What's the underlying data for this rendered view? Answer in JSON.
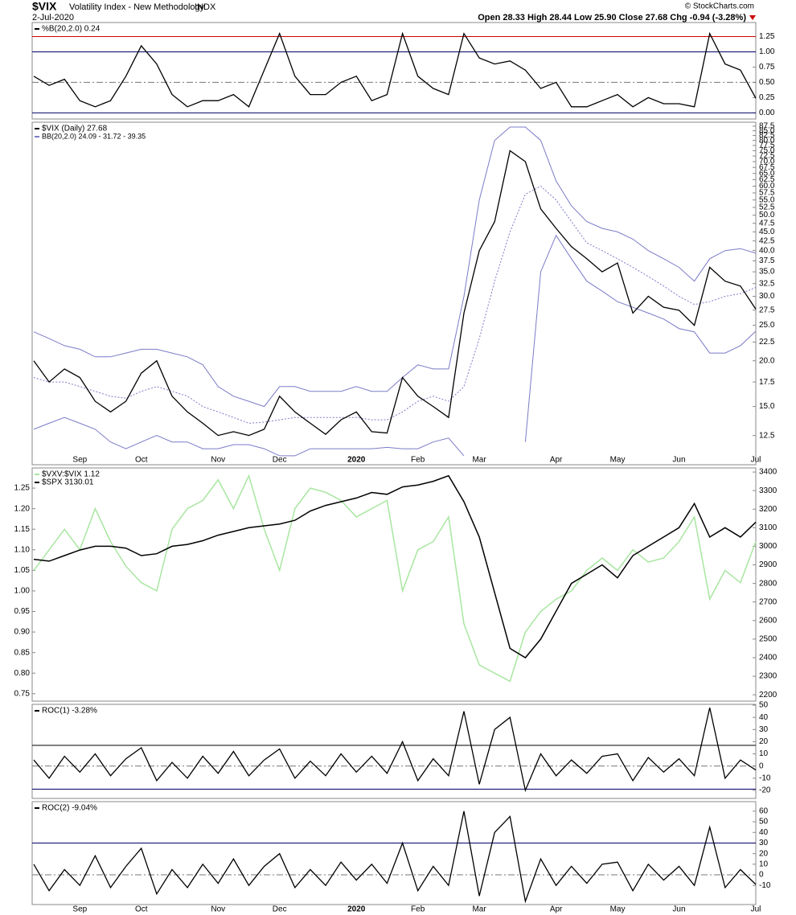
{
  "header": {
    "symbol": "$VIX",
    "name": "Volatility Index - New Methodology",
    "exchange": "INDX",
    "date": "2-Jul-2020",
    "quote": "Open 28.33  High 28.44  Low 25.90  Close 27.68  Chg -0.94 (-3.28%)",
    "credit": "© StockCharts.com"
  },
  "chart_data": [
    {
      "type": "line",
      "ylim": [
        -0.1,
        1.48
      ],
      "yticks": [
        {
          "value": 0,
          "label": "0.00"
        },
        {
          "value": 0.25,
          "label": "0.25"
        },
        {
          "value": 0.5,
          "label": "0.50"
        },
        {
          "value": 0.75,
          "label": "0.75"
        },
        {
          "value": 1,
          "label": "1.00"
        },
        {
          "value": 1.25,
          "label": "1.25"
        }
      ],
      "hlines": [
        {
          "value": 1.25,
          "color": "#cc0000",
          "dash": false
        },
        {
          "value": 1,
          "color": "#000066",
          "dash": false
        },
        {
          "value": 0.5,
          "color": "#777777",
          "dash": true
        },
        {
          "value": 0,
          "color": "#000066",
          "dash": false
        }
      ],
      "series": [
        {
          "name": "%B(20,2.0) 0.24",
          "color": "#000000",
          "values": [
            0.6,
            0.45,
            0.55,
            0.2,
            0.1,
            0.2,
            0.6,
            1.1,
            0.8,
            0.3,
            0.1,
            0.2,
            0.2,
            0.3,
            0.1,
            0.7,
            1.3,
            0.6,
            0.3,
            0.3,
            0.5,
            0.6,
            0.2,
            0.3,
            1.3,
            0.6,
            0.4,
            0.3,
            1.3,
            0.9,
            0.8,
            0.85,
            0.7,
            0.4,
            0.5,
            0.1,
            0.1,
            0.2,
            0.3,
            0.1,
            0.25,
            0.15,
            0.15,
            0.1,
            1.3,
            0.8,
            0.7,
            0.24
          ]
        }
      ]
    },
    {
      "type": "line",
      "log": true,
      "ylim": [
        10.4,
        89.7
      ],
      "categories": [
        null,
        null,
        null,
        "Sep",
        null,
        null,
        null,
        "Oct",
        null,
        null,
        null,
        null,
        "Nov",
        null,
        null,
        null,
        "Dec",
        null,
        null,
        null,
        null,
        "2020",
        null,
        null,
        null,
        "Feb",
        null,
        null,
        null,
        "Mar",
        null,
        null,
        null,
        null,
        "Apr",
        null,
        null,
        null,
        "May",
        null,
        null,
        null,
        "Jun",
        null,
        null,
        null,
        null,
        "Jul"
      ],
      "yticks": [
        12.5,
        {
          "value": 15,
          "label": "15.0"
        },
        17.5,
        {
          "value": 20,
          "label": "20.0"
        },
        22.5,
        {
          "value": 25,
          "label": "25.0"
        },
        27.5,
        {
          "value": 30,
          "label": "30.0"
        },
        32.5,
        {
          "value": 35,
          "label": "35.0"
        },
        37.5,
        {
          "value": 40,
          "label": "40.0"
        },
        42.5,
        {
          "value": 45,
          "label": "45.0"
        },
        47.5,
        {
          "value": 50,
          "label": "50.0"
        },
        52.5,
        {
          "value": 55,
          "label": "55.0"
        },
        57.5,
        {
          "value": 60,
          "label": "60.0"
        },
        62.5,
        {
          "value": 65,
          "label": "65.0"
        },
        67.5,
        {
          "value": 70,
          "label": "70.0"
        },
        72.5,
        {
          "value": 75,
          "label": "75.0"
        },
        77.5,
        {
          "value": 80,
          "label": "80.0"
        },
        82.5,
        {
          "value": 85,
          "label": "85.0"
        },
        87.5
      ],
      "series": [
        {
          "name": "$VIX (Daily) 27.68",
          "color": "#000000",
          "values": [
            20,
            17.5,
            19,
            18,
            15.5,
            14.5,
            15.5,
            18.5,
            20,
            16,
            14.5,
            13.5,
            12.5,
            12.8,
            12.5,
            13,
            16,
            14.5,
            13.5,
            12.6,
            13.8,
            14.5,
            12.8,
            12.7,
            18,
            16,
            15,
            14,
            27,
            40,
            48,
            75,
            70,
            52,
            46,
            41,
            38,
            35,
            37,
            27,
            30,
            28,
            27.5,
            25,
            36,
            33,
            32,
            27.68
          ]
        }
      ],
      "bands": {
        "name": "BB(20,2.0) 24.09 - 31.72 - 39.35",
        "color": "#7b7bc8",
        "upper": [
          24,
          23,
          22,
          21.5,
          20.5,
          20.5,
          21,
          21.5,
          21.5,
          21,
          20.5,
          19.5,
          17,
          16,
          15.5,
          15,
          17,
          17,
          16.5,
          16.5,
          16.5,
          17,
          16.5,
          16.5,
          18,
          19.5,
          19,
          19,
          30,
          55,
          80,
          87,
          87,
          80,
          62,
          53,
          48,
          46,
          45,
          43,
          40,
          38,
          36,
          33,
          38,
          40,
          40.5,
          39.35
        ],
        "middle": [
          18,
          17.5,
          17.5,
          17,
          16.5,
          16,
          15.8,
          16.5,
          17,
          16.5,
          16,
          15,
          14.5,
          14,
          13.5,
          13.6,
          13.8,
          14,
          14,
          14,
          14,
          14,
          13.8,
          13.8,
          14.5,
          15.5,
          16,
          15.5,
          17,
          23,
          33,
          45,
          57,
          60,
          55,
          48,
          42,
          40,
          38,
          36,
          34,
          32,
          30,
          28.5,
          29,
          30,
          30.5,
          31.72
        ],
        "lower": [
          13,
          13.5,
          14,
          13.5,
          13,
          12,
          11.5,
          12,
          12.5,
          12,
          12,
          11.5,
          11.5,
          11.8,
          11.8,
          11.5,
          11,
          11,
          11.5,
          11.5,
          11.5,
          11.5,
          11.5,
          11.6,
          11.5,
          11.5,
          12,
          12.3,
          11,
          null,
          null,
          null,
          12,
          35,
          44,
          38,
          33,
          31,
          29,
          28,
          27,
          26,
          24.5,
          24,
          21,
          21,
          22,
          24.09
        ]
      }
    },
    {
      "type": "line",
      "ylim": [
        0.732,
        1.299
      ],
      "y2lim": [
        2166,
        3422
      ],
      "yticks": [
        {
          "value": 0.75,
          "label": "0.75"
        },
        {
          "value": 0.8,
          "label": "0.80"
        },
        {
          "value": 0.85,
          "label": "0.85"
        },
        {
          "value": 0.9,
          "label": "0.90"
        },
        {
          "value": 0.95,
          "label": "0.95"
        },
        {
          "value": 1,
          "label": "1.00"
        },
        {
          "value": 1.05,
          "label": "1.05"
        },
        {
          "value": 1.1,
          "label": "1.10"
        },
        {
          "value": 1.15,
          "label": "1.15"
        },
        {
          "value": 1.2,
          "label": "1.20"
        },
        {
          "value": 1.25,
          "label": "1.25"
        }
      ],
      "y2ticks": [
        2200,
        2300,
        2400,
        2500,
        2600,
        2700,
        2800,
        2900,
        3000,
        3100,
        3200,
        3300,
        3400
      ],
      "series": [
        {
          "name": "$VXV:$VIX 1.12",
          "color": "#a8e6a0",
          "values": [
            1.05,
            1.1,
            1.15,
            1.1,
            1.2,
            1.12,
            1.06,
            1.02,
            1.0,
            1.15,
            1.2,
            1.22,
            1.27,
            1.2,
            1.28,
            1.15,
            1.05,
            1.2,
            1.25,
            1.24,
            1.22,
            1.18,
            1.2,
            1.22,
            1.0,
            1.1,
            1.12,
            1.18,
            0.92,
            0.82,
            0.8,
            0.78,
            0.9,
            0.95,
            0.98,
            1.0,
            1.05,
            1.08,
            1.05,
            1.1,
            1.07,
            1.08,
            1.12,
            1.18,
            0.98,
            1.05,
            1.02,
            1.12
          ]
        },
        {
          "name": "$SPX 3130.01",
          "color": "#000000",
          "axis": "y2",
          "values": [
            2930,
            2920,
            2950,
            2980,
            3000,
            3000,
            2990,
            2950,
            2960,
            3000,
            3010,
            3030,
            3060,
            3080,
            3100,
            3110,
            3120,
            3140,
            3190,
            3220,
            3240,
            3260,
            3290,
            3280,
            3320,
            3330,
            3350,
            3380,
            3240,
            3050,
            2750,
            2450,
            2400,
            2500,
            2650,
            2800,
            2850,
            2900,
            2830,
            2950,
            3000,
            3050,
            3100,
            3230,
            3050,
            3100,
            3050,
            3130.01
          ]
        }
      ]
    },
    {
      "type": "line",
      "ylim": [
        -26.6,
        50.7
      ],
      "yticks": [
        -20,
        -10,
        0,
        10,
        20,
        30,
        40,
        50
      ],
      "hlines": [
        {
          "value": 17,
          "color": "#000000",
          "dash": false
        },
        {
          "value": 0,
          "color": "#777777",
          "dash": true
        },
        {
          "value": -19,
          "color": "#000066",
          "dash": false
        }
      ],
      "series": [
        {
          "name": "ROC(1) -3.28%",
          "color": "#000000",
          "values": [
            5,
            -10,
            8,
            -5,
            10,
            -8,
            6,
            15,
            -12,
            3,
            -10,
            8,
            -6,
            12,
            -8,
            5,
            14,
            -10,
            4,
            -8,
            10,
            -5,
            8,
            -6,
            20,
            -12,
            6,
            -8,
            45,
            -15,
            30,
            40,
            -20,
            10,
            -8,
            5,
            -6,
            8,
            10,
            -12,
            7,
            -5,
            6,
            -8,
            48,
            -10,
            5,
            -3.28
          ]
        }
      ]
    },
    {
      "type": "line",
      "ylim": [
        -28,
        69
      ],
      "yticks": [
        -10,
        0,
        10,
        20,
        30,
        40,
        50,
        60
      ],
      "categories": [
        null,
        null,
        null,
        "Sep",
        null,
        null,
        null,
        "Oct",
        null,
        null,
        null,
        null,
        "Nov",
        null,
        null,
        null,
        "Dec",
        null,
        null,
        null,
        null,
        "2020",
        null,
        null,
        null,
        "Feb",
        null,
        null,
        null,
        "Mar",
        null,
        null,
        null,
        null,
        "Apr",
        null,
        null,
        null,
        "May",
        null,
        null,
        null,
        "Jun",
        null,
        null,
        null,
        null,
        "Jul"
      ],
      "hlines": [
        {
          "value": 30,
          "color": "#000066",
          "dash": false
        },
        {
          "value": 0,
          "color": "#777777",
          "dash": true
        }
      ],
      "series": [
        {
          "name": "ROC(2) -9.04%",
          "color": "#000000",
          "values": [
            10,
            -15,
            5,
            -10,
            18,
            -12,
            8,
            25,
            -18,
            5,
            -12,
            10,
            -8,
            15,
            -10,
            8,
            20,
            -12,
            5,
            -10,
            12,
            -5,
            10,
            -8,
            30,
            -15,
            8,
            -10,
            60,
            -20,
            40,
            55,
            -25,
            15,
            -10,
            8,
            -8,
            10,
            12,
            -15,
            10,
            -5,
            8,
            -10,
            45,
            -12,
            5,
            -9.04
          ]
        }
      ]
    }
  ]
}
